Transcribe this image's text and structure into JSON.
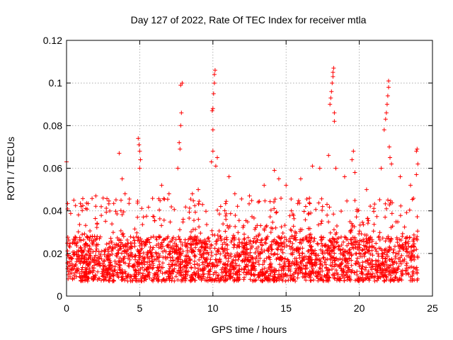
{
  "chart_data": {
    "type": "scatter",
    "title": "Day 127 of 2022, Rate Of TEC Index for receiver mtla",
    "xlabel": "GPS time / hours",
    "ylabel": "ROTI / TECUs",
    "xlim": [
      0,
      25
    ],
    "ylim": [
      0,
      0.12
    ],
    "x_ticks": [
      0,
      5,
      10,
      15,
      20,
      25
    ],
    "x_tick_labels": [
      "0",
      "5",
      "10",
      "15",
      "20",
      "25"
    ],
    "y_ticks": [
      0,
      0.02,
      0.04,
      0.06,
      0.08,
      0.1,
      0.12
    ],
    "y_tick_labels": [
      "0",
      "0.02",
      "0.04",
      "0.06",
      "0.08",
      "0.1",
      "0.12"
    ],
    "grid": true,
    "marker": "+",
    "marker_color": "#ff0000",
    "series": [
      {
        "name": "ROTI",
        "x_range": [
          0,
          24
        ],
        "baseline_band": [
          0.007,
          0.028
        ],
        "points": [
          {
            "x": 0.0,
            "y": 0.063
          },
          {
            "x": 0.5,
            "y": 0.045
          },
          {
            "x": 1.0,
            "y": 0.042
          },
          {
            "x": 2.0,
            "y": 0.047
          },
          {
            "x": 2.5,
            "y": 0.046
          },
          {
            "x": 3.6,
            "y": 0.067
          },
          {
            "x": 3.8,
            "y": 0.055
          },
          {
            "x": 4.0,
            "y": 0.048
          },
          {
            "x": 4.9,
            "y": 0.074
          },
          {
            "x": 4.95,
            "y": 0.071
          },
          {
            "x": 5.0,
            "y": 0.068
          },
          {
            "x": 5.05,
            "y": 0.064
          },
          {
            "x": 5.0,
            "y": 0.06
          },
          {
            "x": 6.5,
            "y": 0.052
          },
          {
            "x": 7.0,
            "y": 0.048
          },
          {
            "x": 7.6,
            "y": 0.06
          },
          {
            "x": 7.75,
            "y": 0.069
          },
          {
            "x": 7.7,
            "y": 0.072
          },
          {
            "x": 7.8,
            "y": 0.08
          },
          {
            "x": 7.85,
            "y": 0.086
          },
          {
            "x": 7.8,
            "y": 0.099
          },
          {
            "x": 7.9,
            "y": 0.1
          },
          {
            "x": 8.6,
            "y": 0.048
          },
          {
            "x": 9.0,
            "y": 0.05
          },
          {
            "x": 9.9,
            "y": 0.063
          },
          {
            "x": 10.0,
            "y": 0.068
          },
          {
            "x": 10.0,
            "y": 0.078
          },
          {
            "x": 9.95,
            "y": 0.087
          },
          {
            "x": 10.0,
            "y": 0.088
          },
          {
            "x": 10.05,
            "y": 0.095
          },
          {
            "x": 10.1,
            "y": 0.1
          },
          {
            "x": 10.1,
            "y": 0.104
          },
          {
            "x": 10.15,
            "y": 0.106
          },
          {
            "x": 10.2,
            "y": 0.061
          },
          {
            "x": 10.3,
            "y": 0.065
          },
          {
            "x": 11.1,
            "y": 0.056
          },
          {
            "x": 11.5,
            "y": 0.048
          },
          {
            "x": 12.5,
            "y": 0.047
          },
          {
            "x": 13.5,
            "y": 0.052
          },
          {
            "x": 14.2,
            "y": 0.059
          },
          {
            "x": 14.5,
            "y": 0.055
          },
          {
            "x": 15.0,
            "y": 0.052
          },
          {
            "x": 16.0,
            "y": 0.055
          },
          {
            "x": 16.8,
            "y": 0.061
          },
          {
            "x": 17.3,
            "y": 0.06
          },
          {
            "x": 17.9,
            "y": 0.066
          },
          {
            "x": 18.0,
            "y": 0.09
          },
          {
            "x": 18.05,
            "y": 0.093
          },
          {
            "x": 18.1,
            "y": 0.096
          },
          {
            "x": 18.15,
            "y": 0.1
          },
          {
            "x": 18.2,
            "y": 0.103
          },
          {
            "x": 18.2,
            "y": 0.105
          },
          {
            "x": 18.25,
            "y": 0.107
          },
          {
            "x": 18.3,
            "y": 0.082
          },
          {
            "x": 18.3,
            "y": 0.086
          },
          {
            "x": 18.4,
            "y": 0.06
          },
          {
            "x": 19.0,
            "y": 0.056
          },
          {
            "x": 19.5,
            "y": 0.064
          },
          {
            "x": 19.6,
            "y": 0.068
          },
          {
            "x": 19.7,
            "y": 0.058
          },
          {
            "x": 20.5,
            "y": 0.05
          },
          {
            "x": 21.5,
            "y": 0.06
          },
          {
            "x": 21.7,
            "y": 0.078
          },
          {
            "x": 21.8,
            "y": 0.083
          },
          {
            "x": 21.85,
            "y": 0.086
          },
          {
            "x": 21.9,
            "y": 0.09
          },
          {
            "x": 21.95,
            "y": 0.094
          },
          {
            "x": 22.0,
            "y": 0.098
          },
          {
            "x": 22.0,
            "y": 0.101
          },
          {
            "x": 22.05,
            "y": 0.07
          },
          {
            "x": 22.1,
            "y": 0.065
          },
          {
            "x": 22.2,
            "y": 0.062
          },
          {
            "x": 22.8,
            "y": 0.056
          },
          {
            "x": 23.5,
            "y": 0.052
          },
          {
            "x": 23.9,
            "y": 0.068
          },
          {
            "x": 23.95,
            "y": 0.069
          },
          {
            "x": 24.0,
            "y": 0.062
          },
          {
            "x": 23.9,
            "y": 0.057
          }
        ]
      }
    ]
  }
}
